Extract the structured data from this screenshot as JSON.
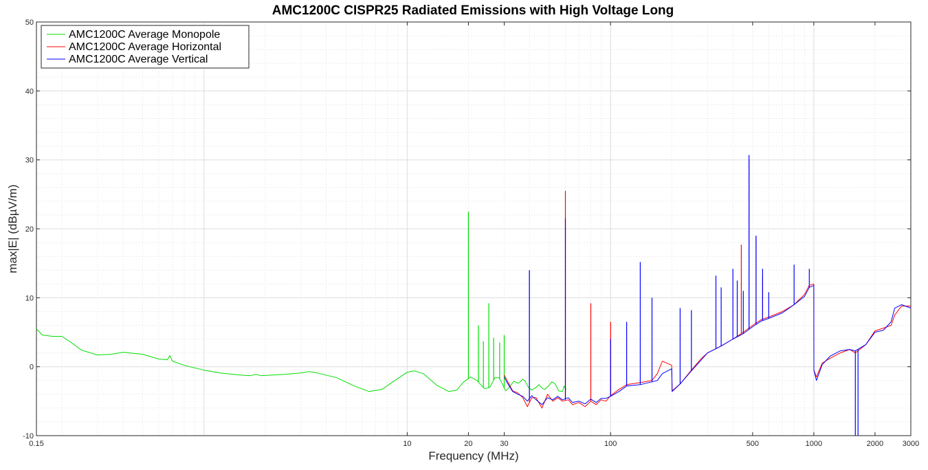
{
  "chart_data": {
    "type": "line",
    "title": "AMC1200C CISPR25 Radiated Emissions with High Voltage Long",
    "xlabel": "Frequency (MHz)",
    "ylabel": "max|E| (dBµV/m)",
    "xscale": "log",
    "xlim": [
      0.15,
      3000
    ],
    "ylim": [
      -10,
      50
    ],
    "grid": true,
    "legend_position": "top-left",
    "x_tick_labels": [
      {
        "value": 0.15,
        "label": "0.15"
      },
      {
        "value": 10,
        "label": "10"
      },
      {
        "value": 20,
        "label": "20"
      },
      {
        "value": 30,
        "label": "30"
      },
      {
        "value": 100,
        "label": "100"
      },
      {
        "value": 500,
        "label": "500"
      },
      {
        "value": 1000,
        "label": "1000"
      },
      {
        "value": 2000,
        "label": "2000"
      },
      {
        "value": 3000,
        "label": "3000"
      }
    ],
    "y_ticks": [
      -10,
      0,
      10,
      20,
      30,
      40,
      50
    ],
    "series": [
      {
        "name": "AMC1200C Average Monopole",
        "color": "#00dd00",
        "points": [
          [
            0.15,
            5.5
          ],
          [
            0.16,
            4.6
          ],
          [
            0.18,
            4.4
          ],
          [
            0.2,
            4.4
          ],
          [
            0.22,
            3.6
          ],
          [
            0.25,
            2.4
          ],
          [
            0.3,
            1.7
          ],
          [
            0.35,
            1.8
          ],
          [
            0.4,
            2.1
          ],
          [
            0.5,
            1.8
          ],
          [
            0.6,
            1.1
          ],
          [
            0.66,
            1.0
          ],
          [
            0.68,
            1.6
          ],
          [
            0.7,
            0.8
          ],
          [
            0.8,
            0.2
          ],
          [
            1.0,
            -0.5
          ],
          [
            1.2,
            -0.9
          ],
          [
            1.5,
            -1.2
          ],
          [
            1.7,
            -1.3
          ],
          [
            1.8,
            -1.1
          ],
          [
            1.9,
            -1.3
          ],
          [
            2.2,
            -1.2
          ],
          [
            2.5,
            -1.1
          ],
          [
            3.0,
            -0.9
          ],
          [
            3.3,
            -0.7
          ],
          [
            3.6,
            -0.9
          ],
          [
            4.5,
            -1.6
          ],
          [
            5.5,
            -2.8
          ],
          [
            6.5,
            -3.6
          ],
          [
            7.5,
            -3.3
          ],
          [
            8.5,
            -2.2
          ],
          [
            10,
            -0.8
          ],
          [
            10.8,
            -0.6
          ],
          [
            12,
            -1.0
          ],
          [
            14,
            -2.7
          ],
          [
            16,
            -3.6
          ],
          [
            17.5,
            -3.4
          ],
          [
            19,
            -2.2
          ],
          [
            20.5,
            -1.5
          ],
          [
            22,
            -2.0
          ],
          [
            24,
            -3.2
          ],
          [
            25.5,
            -3.0
          ],
          [
            27,
            -1.6
          ],
          [
            28.3,
            -1.6
          ],
          [
            29,
            -2.2
          ],
          [
            30.5,
            -3.5
          ],
          [
            31.5,
            -3.1
          ],
          [
            33.5,
            -2.1
          ],
          [
            35,
            -2.4
          ],
          [
            36,
            -2.2
          ],
          [
            37,
            -1.8
          ],
          [
            38,
            -2.1
          ],
          [
            39.5,
            -3.0
          ],
          [
            41,
            -3.4
          ],
          [
            43,
            -3.0
          ],
          [
            44.5,
            -2.6
          ],
          [
            46,
            -3.1
          ],
          [
            47.5,
            -3.3
          ],
          [
            49.5,
            -2.8
          ],
          [
            51.5,
            -2.2
          ],
          [
            53.5,
            -2.5
          ],
          [
            55.5,
            -3.5
          ],
          [
            58,
            -3.6
          ],
          [
            59,
            -2.8
          ],
          [
            60.5,
            -3.3
          ]
        ],
        "spikes": [
          [
            20.0,
            22.5
          ],
          [
            22.4,
            6.0
          ],
          [
            23.7,
            3.7
          ],
          [
            25.2,
            9.2
          ],
          [
            26.6,
            4.2
          ],
          [
            28.5,
            3.5
          ],
          [
            30.0,
            4.6
          ]
        ]
      },
      {
        "name": "AMC1200C Average Horizontal",
        "color": "#ff0000",
        "points": [
          [
            30,
            -1.2
          ],
          [
            31,
            -2.0
          ],
          [
            33,
            -3.5
          ],
          [
            35,
            -3.8
          ],
          [
            37,
            -4.5
          ],
          [
            39,
            -5.8
          ],
          [
            41,
            -4.5
          ],
          [
            43,
            -4.5
          ],
          [
            46,
            -6.0
          ],
          [
            49,
            -4.0
          ],
          [
            52,
            -5.0
          ],
          [
            55,
            -4.5
          ],
          [
            58,
            -5.0
          ],
          [
            62,
            -4.8
          ],
          [
            65,
            -5.5
          ],
          [
            70,
            -5.2
          ],
          [
            75,
            -5.8
          ],
          [
            80,
            -5.0
          ],
          [
            85,
            -5.5
          ],
          [
            90,
            -4.8
          ],
          [
            95,
            -5.0
          ],
          [
            100,
            -4.2
          ],
          [
            110,
            -3.3
          ],
          [
            120,
            -2.6
          ],
          [
            140,
            -2.3
          ],
          [
            160,
            -2.0
          ],
          [
            170,
            -1.0
          ],
          [
            180,
            0.8
          ],
          [
            200,
            0.2
          ],
          [
            201,
            -3.5
          ],
          [
            220,
            -2.5
          ],
          [
            250,
            -0.5
          ],
          [
            280,
            1.2
          ],
          [
            300,
            2.0
          ],
          [
            350,
            3.0
          ],
          [
            400,
            4.0
          ],
          [
            450,
            5.0
          ],
          [
            500,
            6.0
          ],
          [
            550,
            6.8
          ],
          [
            600,
            7.2
          ],
          [
            700,
            8.0
          ],
          [
            800,
            9.0
          ],
          [
            900,
            10.5
          ],
          [
            950,
            11.8
          ],
          [
            1000,
            12.0
          ],
          [
            1001,
            -0.5
          ],
          [
            1030,
            -1.5
          ],
          [
            1100,
            0.5
          ],
          [
            1200,
            1.2
          ],
          [
            1350,
            2.0
          ],
          [
            1500,
            2.5
          ],
          [
            1600,
            2.0
          ],
          [
            1800,
            3.2
          ],
          [
            2000,
            5.2
          ],
          [
            2200,
            5.6
          ],
          [
            2400,
            6.0
          ],
          [
            2500,
            7.5
          ],
          [
            2700,
            8.8
          ],
          [
            3000,
            8.8
          ]
        ],
        "spikes": [
          [
            39.9,
            14.0
          ],
          [
            60.0,
            25.5
          ],
          [
            80.0,
            9.2
          ],
          [
            100.1,
            6.5
          ],
          [
            440,
            17.7
          ],
          [
            480,
            30.0
          ],
          [
            520,
            18.8
          ],
          [
            560,
            13.0
          ]
        ]
      },
      {
        "name": "AMC1200C Average Vertical",
        "color": "#0000ff",
        "points": [
          [
            30,
            -1.5
          ],
          [
            31,
            -2.3
          ],
          [
            33,
            -3.6
          ],
          [
            35,
            -4.0
          ],
          [
            37,
            -4.3
          ],
          [
            39,
            -5.0
          ],
          [
            41,
            -4.2
          ],
          [
            43,
            -4.8
          ],
          [
            46,
            -5.5
          ],
          [
            49,
            -4.5
          ],
          [
            52,
            -4.8
          ],
          [
            55,
            -4.3
          ],
          [
            58,
            -4.8
          ],
          [
            62,
            -4.5
          ],
          [
            65,
            -5.2
          ],
          [
            70,
            -5.0
          ],
          [
            75,
            -5.4
          ],
          [
            80,
            -4.7
          ],
          [
            85,
            -5.2
          ],
          [
            90,
            -4.6
          ],
          [
            95,
            -4.6
          ],
          [
            100,
            -4.3
          ],
          [
            110,
            -3.6
          ],
          [
            120,
            -2.8
          ],
          [
            140,
            -2.6
          ],
          [
            160,
            -2.2
          ],
          [
            170,
            -2.0
          ],
          [
            180,
            -1.0
          ],
          [
            200,
            -0.3
          ],
          [
            201,
            -3.6
          ],
          [
            220,
            -2.5
          ],
          [
            250,
            -0.6
          ],
          [
            280,
            1.0
          ],
          [
            300,
            2.0
          ],
          [
            350,
            3.0
          ],
          [
            400,
            4.0
          ],
          [
            450,
            4.8
          ],
          [
            500,
            5.8
          ],
          [
            550,
            6.6
          ],
          [
            600,
            7.0
          ],
          [
            700,
            7.8
          ],
          [
            800,
            9.0
          ],
          [
            900,
            10.2
          ],
          [
            950,
            11.5
          ],
          [
            1000,
            11.8
          ],
          [
            1001,
            -0.5
          ],
          [
            1030,
            -2.0
          ],
          [
            1100,
            0.3
          ],
          [
            1200,
            1.5
          ],
          [
            1350,
            2.3
          ],
          [
            1500,
            2.5
          ],
          [
            1600,
            2.3
          ],
          [
            1800,
            3.2
          ],
          [
            2000,
            5.0
          ],
          [
            2200,
            5.3
          ],
          [
            2400,
            6.5
          ],
          [
            2500,
            8.5
          ],
          [
            2700,
            9.0
          ],
          [
            3000,
            8.5
          ]
        ],
        "spikes": [
          [
            39.9,
            14.0
          ],
          [
            60.0,
            21.5
          ],
          [
            100.1,
            4.0
          ],
          [
            120,
            6.5
          ],
          [
            140,
            15.2
          ],
          [
            160,
            10.0
          ],
          [
            220,
            8.5
          ],
          [
            250,
            8.2
          ],
          [
            330,
            13.2
          ],
          [
            350,
            11.5
          ],
          [
            400,
            14.2
          ],
          [
            420,
            12.5
          ],
          [
            450,
            11.0
          ],
          [
            480,
            30.7
          ],
          [
            520,
            19.0
          ],
          [
            560,
            14.2
          ],
          [
            600,
            10.8
          ],
          [
            800,
            14.8
          ],
          [
            950,
            14.2
          ]
        ],
        "dips": [
          [
            1600,
            -10
          ],
          [
            1650,
            -10
          ]
        ]
      }
    ]
  }
}
